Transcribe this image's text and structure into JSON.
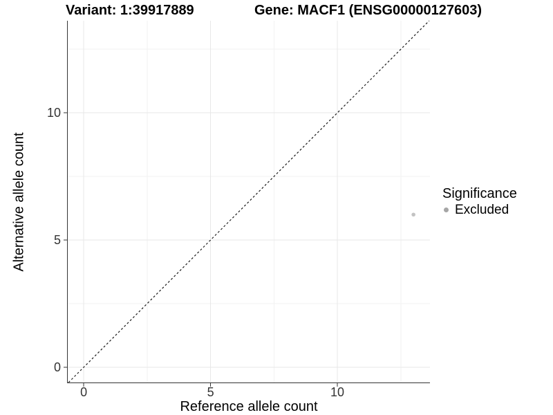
{
  "figure": {
    "title_left": "Variant: 1:39917889",
    "title_right": "Gene: MACF1 (ENSG00000127603)"
  },
  "chart_data": {
    "type": "scatter",
    "title": "Variant: 1:39917889   Gene: MACF1 (ENSG00000127603)",
    "xlabel": "Reference allele count",
    "ylabel": "Alternative allele count",
    "xlim": [
      -0.63,
      13.65
    ],
    "ylim": [
      -0.6,
      13.62
    ],
    "x_ticks": [
      0,
      5,
      10
    ],
    "y_ticks": [
      0,
      5,
      10
    ],
    "x_minor_ticks": [
      2.5,
      7.5,
      12.5
    ],
    "y_minor_ticks": [
      2.5,
      7.5,
      12.5
    ],
    "grid": "major and minor gridlines, light grey on white panel",
    "series": [
      {
        "name": "Excluded",
        "points": [
          {
            "x": 13,
            "y": 6
          }
        ]
      }
    ],
    "reference_line": {
      "kind": "identity",
      "slope": 1,
      "intercept": 0,
      "style": "dashed"
    },
    "legend": {
      "title": "Significance",
      "position": "right",
      "items": [
        {
          "label": "Excluded"
        }
      ]
    }
  },
  "colors": {
    "background": "#ffffff",
    "text": "#000000",
    "tick_text": "#333333",
    "axis_line": "#333333",
    "grid_major": "#e7e7e7",
    "grid_minor": "#f2f2f2",
    "reference_line": "#1a1a1a",
    "point_excluded": "#c3c3c3",
    "legend_point": "#a6a6a6"
  }
}
